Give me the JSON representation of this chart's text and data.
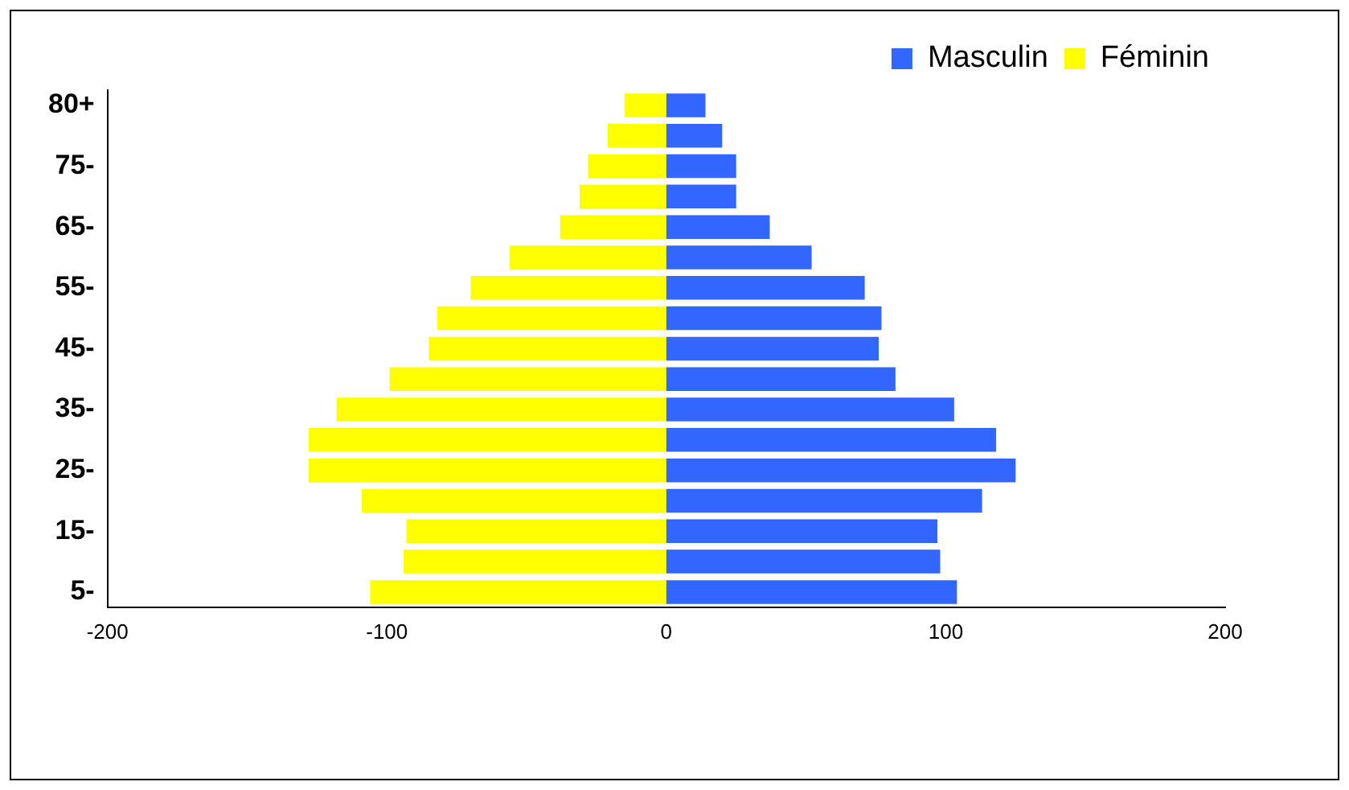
{
  "chart_data": {
    "type": "bar",
    "orientation": "horizontal",
    "stacked": true,
    "categories": [
      "80+",
      null,
      "75-",
      null,
      "65-",
      null,
      "55-",
      null,
      "45-",
      null,
      "35-",
      null,
      "25-",
      null,
      "15-",
      null,
      "5-"
    ],
    "series": [
      {
        "name": "Masculin",
        "color": "#3366ff",
        "values": [
          14,
          20,
          25,
          25,
          37,
          52,
          71,
          77,
          76,
          82,
          103,
          118,
          125,
          113,
          97,
          98,
          104
        ]
      },
      {
        "name": "Féminin",
        "color": "#ffff00",
        "values": [
          -15,
          -21,
          -28,
          -31,
          -38,
          -56,
          -70,
          -82,
          -85,
          -99,
          -118,
          -128,
          -128,
          -109,
          -93,
          -94,
          -106
        ]
      }
    ],
    "xlim": [
      -200,
      200
    ],
    "xticks": [
      -200,
      -100,
      0,
      100,
      200
    ],
    "grid": false,
    "legend": "top right"
  }
}
